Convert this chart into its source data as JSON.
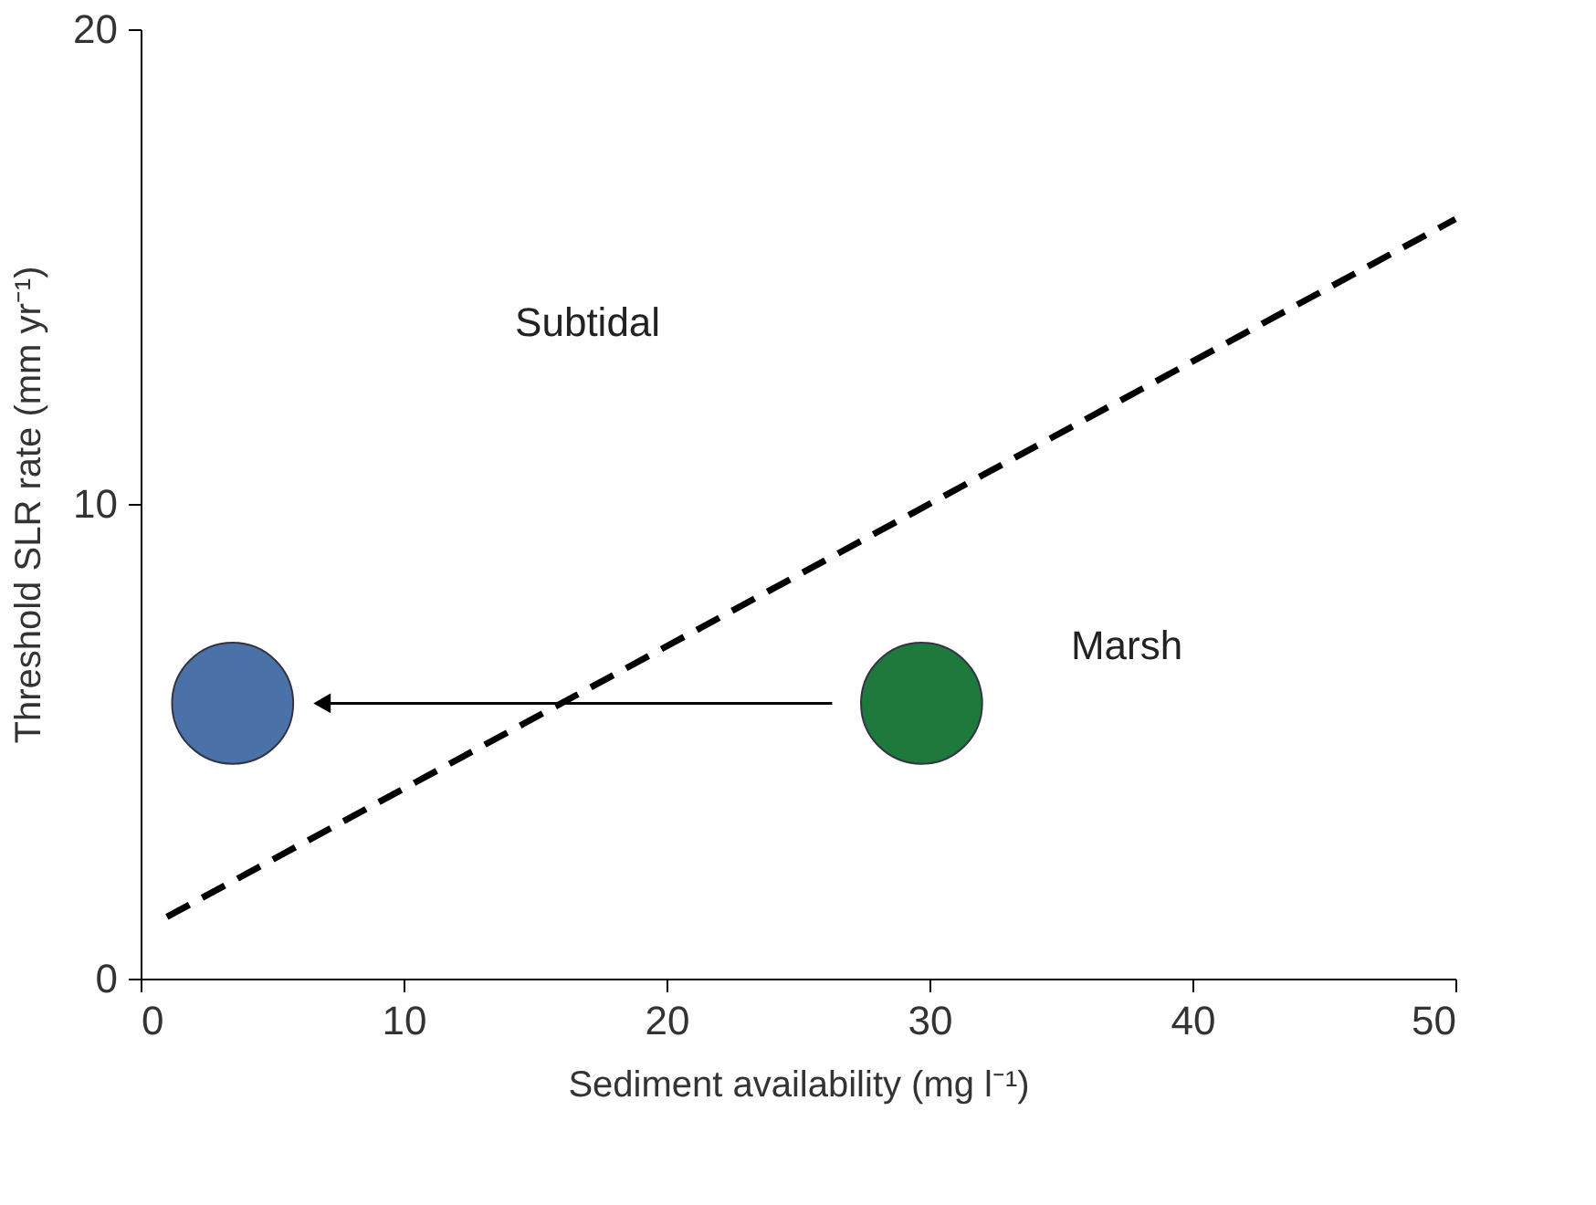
{
  "chart_data": {
    "type": "scatter",
    "xlabel": "Sediment availability (mg l⁻¹)",
    "ylabel": "Threshold SLR rate (mm yr⁻¹)",
    "xlim": [
      0,
      50
    ],
    "ylim": [
      0,
      20
    ],
    "xticks": [
      0,
      10,
      20,
      30,
      40,
      50
    ],
    "yticks": [
      0,
      10,
      20
    ],
    "grid": false,
    "marker": "circle",
    "series": [
      {
        "type": "line",
        "line_style": "dashed",
        "marker": "none",
        "color": "#000000",
        "x": [
          1,
          50
        ],
        "values": [
          1.3,
          16.0
        ]
      },
      {
        "color": "#4a72a8",
        "x": [
          3.5
        ],
        "values": [
          5.8
        ]
      },
      {
        "color": "#1e7a3c",
        "x": [
          29.7
        ],
        "values": [
          5.8
        ]
      }
    ],
    "annotations": [
      "Subtidal",
      "Marsh"
    ]
  }
}
